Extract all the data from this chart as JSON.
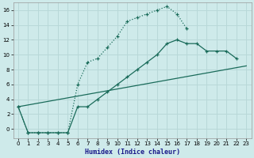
{
  "xlabel": "Humidex (Indice chaleur)",
  "bg_color": "#ceeaea",
  "grid_color": "#b8d8d8",
  "line_color": "#1a6b5a",
  "xlim": [
    -0.5,
    23.5
  ],
  "ylim": [
    -1.2,
    17.0
  ],
  "xticks": [
    0,
    1,
    2,
    3,
    4,
    5,
    6,
    7,
    8,
    9,
    10,
    11,
    12,
    13,
    14,
    15,
    16,
    17,
    18,
    19,
    20,
    21,
    22,
    23
  ],
  "yticks": [
    0,
    2,
    4,
    6,
    8,
    10,
    12,
    14,
    16
  ],
  "curve1_x": [
    0,
    1,
    2,
    3,
    4,
    5,
    6,
    7,
    8,
    9,
    10,
    11,
    12,
    13,
    14,
    15,
    16,
    17
  ],
  "curve1_y": [
    3.0,
    -0.5,
    -0.5,
    -0.5,
    -0.5,
    -0.5,
    6.0,
    9.0,
    9.5,
    11.0,
    12.5,
    14.5,
    15.0,
    15.5,
    16.0,
    16.5,
    15.5,
    13.5
  ],
  "curve2_x": [
    0,
    1,
    2,
    3,
    4,
    5,
    6,
    7,
    8,
    9,
    10,
    11,
    12,
    13,
    14,
    15,
    16,
    17,
    18,
    19,
    20,
    21,
    22
  ],
  "curve2_y": [
    3.0,
    -0.5,
    -0.5,
    -0.5,
    -0.5,
    -0.5,
    3.0,
    3.0,
    4.0,
    5.0,
    6.0,
    7.0,
    8.0,
    9.0,
    10.0,
    11.5,
    12.0,
    11.5,
    11.5,
    10.5,
    10.5,
    10.5,
    9.5
  ],
  "curve3_x": [
    0,
    23
  ],
  "curve3_y": [
    3.0,
    8.5
  ]
}
